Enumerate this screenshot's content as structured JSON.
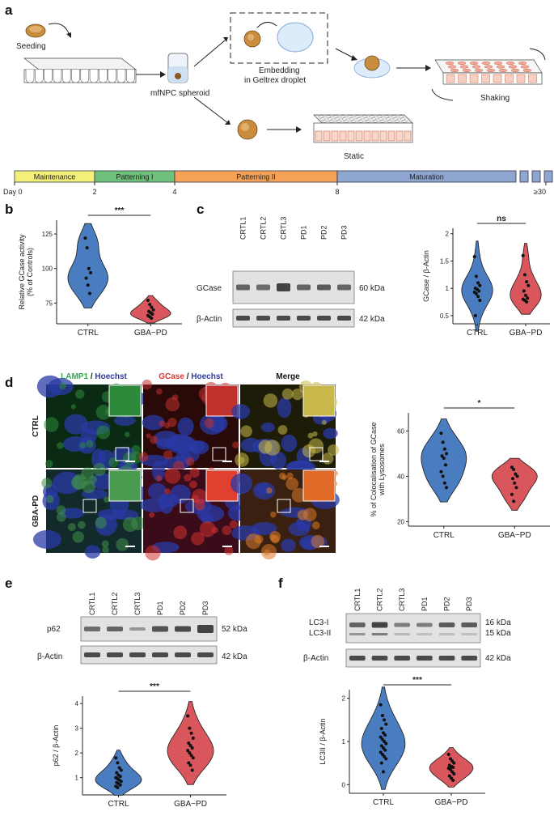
{
  "panel_labels": {
    "a": "a",
    "b": "b",
    "c": "c",
    "d": "d",
    "e": "e",
    "f": "f"
  },
  "schematic": {
    "seeding": "Seeding",
    "spheroid": "mfNPC spheroid",
    "embedding_line1": "Embedding",
    "embedding_line2": "in Geltrex droplet",
    "shaking": "Shaking",
    "static": "Static"
  },
  "timeline": {
    "phases": [
      {
        "label": "Maintenance",
        "color": "#f5f07a"
      },
      {
        "label": "Patterning I",
        "color": "#6fc07a"
      },
      {
        "label": "Patterning II",
        "color": "#f5a257"
      },
      {
        "label": "Maturation",
        "color": "#8fa6d1"
      }
    ],
    "days": [
      "Day 0",
      "2",
      "4",
      "8",
      "≥30"
    ]
  },
  "groups": {
    "ctrl": "CTRL",
    "gba": "GBA−PD"
  },
  "colors": {
    "ctrl": "#4a7cc0",
    "gba": "#d9575c"
  },
  "significance": {
    "b": "***",
    "c": "ns",
    "d": "*",
    "e": "***",
    "f": "***"
  },
  "blot_c": {
    "lanes": [
      "CRTL1",
      "CRTL2",
      "CRTL3",
      "PD1",
      "PD2",
      "PD3"
    ],
    "rows": [
      {
        "label": "GCase",
        "size": "60 kDa"
      },
      {
        "label": "β-Actin",
        "size": "42 kDa"
      }
    ]
  },
  "blot_e": {
    "lanes": [
      "CRTL1",
      "CRTL2",
      "CRTL3",
      "PD1",
      "PD2",
      "PD3"
    ],
    "rows": [
      {
        "label": "p62",
        "size": "52 kDa"
      },
      {
        "label": "β-Actin",
        "size": "42 kDa"
      }
    ]
  },
  "blot_f": {
    "lanes": [
      "CRTL1",
      "CRTL2",
      "CRTL3",
      "PD1",
      "PD2",
      "PD3"
    ],
    "rows": [
      {
        "label": "LC3-I",
        "size": "16 kDa"
      },
      {
        "label": "LC3-II",
        "size": "15 kDa"
      },
      {
        "label": "β-Actin",
        "size": "42 kDa"
      }
    ]
  },
  "micro": {
    "headers": [
      {
        "a": "LAMP1",
        "sep": " / ",
        "b": "Hoechst"
      },
      {
        "a": "GCase",
        "sep": " / ",
        "b": "Hoechst"
      },
      {
        "a": "Merge",
        "sep": "",
        "b": ""
      }
    ],
    "rows": [
      "CTRL",
      "GBA-PD"
    ]
  },
  "chart_data": [
    {
      "panel": "b",
      "type": "violin",
      "ylabel": "Relative GCase activity\n(% of Controls)",
      "yticks": [
        75,
        100,
        125
      ],
      "ylim": [
        60,
        135
      ],
      "categories": [
        "CTRL",
        "GBA−PD"
      ],
      "series": [
        {
          "name": "CTRL",
          "values": [
            122,
            115,
            100,
            97,
            93,
            88,
            82
          ]
        },
        {
          "name": "GBA−PD",
          "values": [
            77,
            74,
            72,
            70,
            69,
            68,
            67,
            66,
            65,
            64
          ]
        }
      ]
    },
    {
      "panel": "c",
      "type": "violin",
      "ylabel": "GCase / β-Actin",
      "yticks": [
        0.5,
        1.0,
        1.5,
        2.0
      ],
      "ylim": [
        0.35,
        2.1
      ],
      "categories": [
        "CTRL",
        "GBA−PD"
      ],
      "series": [
        {
          "name": "CTRL",
          "values": [
            1.58,
            1.22,
            1.1,
            1.05,
            1.0,
            0.98,
            0.95,
            0.93,
            0.9,
            0.85,
            0.78,
            0.5
          ]
        },
        {
          "name": "GBA−PD",
          "values": [
            1.6,
            1.25,
            1.12,
            1.05,
            0.95,
            0.87,
            0.82,
            0.8,
            0.78,
            0.75
          ]
        }
      ]
    },
    {
      "panel": "d",
      "type": "violin",
      "ylabel": "% of Colocalisation of GCase\nwith Lysosomes",
      "yticks": [
        20,
        40,
        60
      ],
      "ylim": [
        18,
        68
      ],
      "categories": [
        "CTRL",
        "GBA−PD"
      ],
      "series": [
        {
          "name": "CTRL",
          "values": [
            59,
            55,
            52,
            50,
            49,
            48,
            45,
            42,
            40,
            37,
            35
          ]
        },
        {
          "name": "GBA−PD",
          "values": [
            44,
            43,
            41,
            40,
            39,
            37,
            35,
            32,
            29
          ]
        }
      ]
    },
    {
      "panel": "e",
      "type": "violin",
      "ylabel": "p62 / β-Actin",
      "yticks": [
        1,
        2,
        3,
        4
      ],
      "ylim": [
        0.3,
        4.3
      ],
      "categories": [
        "CTRL",
        "GBA−PD"
      ],
      "series": [
        {
          "name": "CTRL",
          "values": [
            1.8,
            1.6,
            1.4,
            1.3,
            1.2,
            1.1,
            1.05,
            1.0,
            0.95,
            0.9,
            0.85,
            0.8,
            0.75,
            0.7,
            0.65,
            0.6
          ]
        },
        {
          "name": "GBA−PD",
          "values": [
            3.5,
            3.0,
            2.8,
            2.6,
            2.4,
            2.3,
            2.2,
            2.1,
            2.0,
            1.9,
            1.8,
            1.6,
            1.5,
            1.3
          ]
        }
      ]
    },
    {
      "panel": "f",
      "type": "violin",
      "ylabel": "LC3II / β-Actin",
      "yticks": [
        0,
        1,
        2
      ],
      "ylim": [
        -0.2,
        2.2
      ],
      "categories": [
        "CTRL",
        "GBA−PD"
      ],
      "series": [
        {
          "name": "CTRL",
          "values": [
            1.85,
            1.6,
            1.5,
            1.4,
            1.3,
            1.2,
            1.15,
            1.1,
            1.05,
            1.0,
            0.95,
            0.9,
            0.85,
            0.8,
            0.75,
            0.7,
            0.65,
            0.6,
            0.5,
            0.3
          ]
        },
        {
          "name": "GBA−PD",
          "values": [
            0.7,
            0.6,
            0.55,
            0.5,
            0.45,
            0.42,
            0.4,
            0.38,
            0.35,
            0.3,
            0.25,
            0.2,
            0.15,
            0.1
          ]
        }
      ]
    }
  ]
}
